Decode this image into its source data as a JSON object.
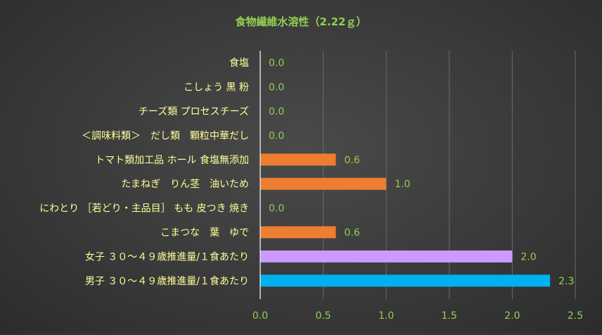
{
  "chart_data": {
    "type": "bar",
    "orientation": "horizontal",
    "title": "食物繊維水溶性（2.22ｇ）",
    "xlabel": "",
    "ylabel": "",
    "xlim": [
      0,
      2.5
    ],
    "ticks": [
      "0.0",
      "0.5",
      "1.0",
      "1.5",
      "2.0",
      "2.5"
    ],
    "tick_values": [
      0,
      0.5,
      1.0,
      1.5,
      2.0,
      2.5
    ],
    "grid": true,
    "categories": [
      "食塩",
      "こしょう 黒 粉",
      "チーズ類 プロセスチーズ",
      "＜調味料類＞　だし類　顆粒中華だし",
      "トマト類加工品 ホール 食塩無添加",
      "たまねぎ　りん茎　油いため",
      "にわとり ［若どり・主品目］ もも 皮つき 焼き",
      "こまつな　葉　ゆで",
      "女子 ３０～４９歳推進量/１食あたり",
      "男子 ３０～４９歳推進量/１食あたり"
    ],
    "values": [
      0.0,
      0.0,
      0.0,
      0.0,
      0.6,
      1.0,
      0.0,
      0.6,
      2.0,
      2.3
    ],
    "value_labels": [
      "0.0",
      "0.0",
      "0.0",
      "0.0",
      "0.6",
      "1.0",
      "0.0",
      "0.6",
      "2.0",
      "2.3"
    ],
    "bar_colors": [
      "#ED7D31",
      "#ED7D31",
      "#ED7D31",
      "#ED7D31",
      "#ED7D31",
      "#ED7D31",
      "#ED7D31",
      "#ED7D31",
      "#CC99FF",
      "#00B0F0"
    ],
    "colors": {
      "title": "#92D050",
      "category_label": "#FFFF99",
      "value_label": "#92D050",
      "tick_label": "#92D050",
      "gridline": "#6a6a6a",
      "axis_line": "#d9d9d9"
    }
  }
}
